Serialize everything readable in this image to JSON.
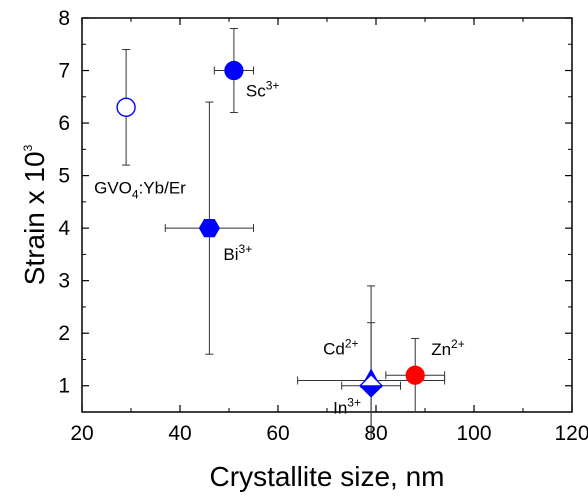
{
  "chart_data": {
    "type": "scatter",
    "xlabel": "Crystallite size, nm",
    "ylabel": {
      "base": "Strain x 10",
      "exponent": "3"
    },
    "xlim": [
      20,
      120
    ],
    "ylim": [
      0.5,
      8
    ],
    "xticks": [
      20,
      40,
      60,
      80,
      100,
      120
    ],
    "yticks": [
      1,
      2,
      3,
      4,
      5,
      6,
      7,
      8
    ],
    "grid": false,
    "legend": "none",
    "points": [
      {
        "id": "gvo4",
        "x": 29,
        "y": 6.3,
        "xerr": 1.5,
        "yerr_low": 1.1,
        "yerr_high": 1.1,
        "marker": "circle-open",
        "color": "#0000ff",
        "label": {
          "parts": [
            {
              "t": "GVO"
            },
            {
              "t": "4",
              "sub": true
            },
            {
              "t": ":Yb/Er"
            }
          ]
        }
      },
      {
        "id": "sc",
        "x": 51,
        "y": 7.0,
        "xerr": 4,
        "yerr_low": 0.8,
        "yerr_high": 0.8,
        "marker": "circle",
        "color": "#0000ff",
        "label": {
          "parts": [
            {
              "t": "Sc"
            },
            {
              "t": "3+",
              "sup": true
            }
          ]
        }
      },
      {
        "id": "bi",
        "x": 46,
        "y": 4.0,
        "xerr": 9,
        "yerr_low": 2.4,
        "yerr_high": 2.4,
        "marker": "hexagon",
        "color": "#0000ff",
        "label": {
          "parts": [
            {
              "t": "Bi"
            },
            {
              "t": "3+",
              "sup": true
            }
          ]
        }
      },
      {
        "id": "cd",
        "x": 79,
        "y": 1.1,
        "xerr": 15,
        "yerr_low": 1.1,
        "yerr_high": 1.8,
        "marker": "triangle",
        "color": "#0000ff",
        "label": {
          "parts": [
            {
              "t": "Cd"
            },
            {
              "t": "2+",
              "sup": true
            }
          ]
        }
      },
      {
        "id": "in",
        "x": 79,
        "y": 1.0,
        "xerr": 6,
        "yerr_low": 1.0,
        "yerr_high": 1.2,
        "marker": "diamond-half",
        "color": "#0000ff",
        "label": {
          "parts": [
            {
              "t": "In"
            },
            {
              "t": "3+",
              "sup": true
            }
          ]
        }
      },
      {
        "id": "zn",
        "x": 88,
        "y": 1.2,
        "xerr": 6,
        "yerr_low": 0.7,
        "yerr_high": 0.7,
        "marker": "circle",
        "color": "#ff0000",
        "label": {
          "parts": [
            {
              "t": "Zn"
            },
            {
              "t": "2+",
              "sup": true
            }
          ]
        }
      }
    ]
  }
}
